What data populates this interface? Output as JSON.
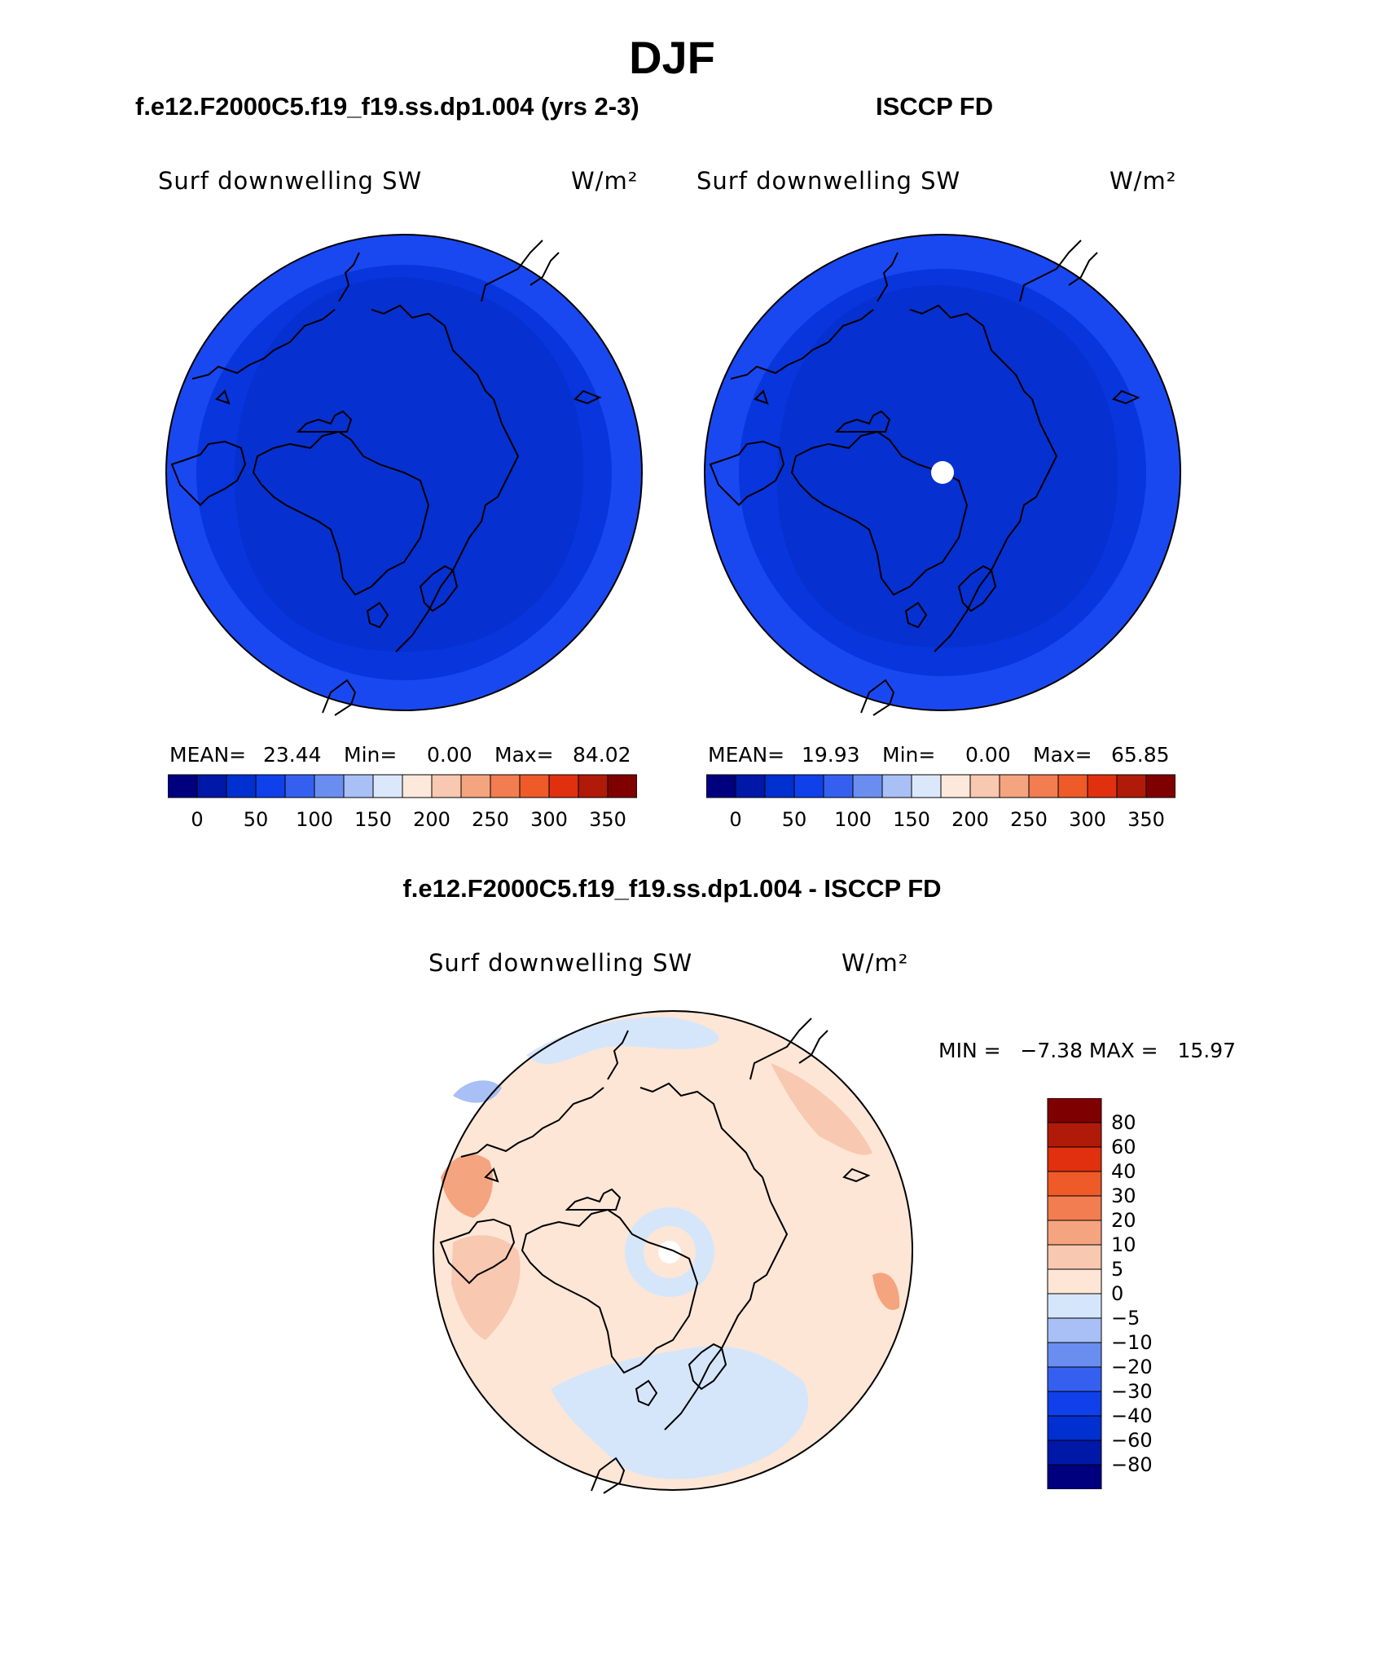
{
  "title": "DJF",
  "colors": {
    "sequential": [
      "#00007f",
      "#0018a8",
      "#0030d0",
      "#1040ea",
      "#3560ef",
      "#6a8ef0",
      "#a8c0f5",
      "#dbe8fb",
      "#fde9dc",
      "#f8c8b0",
      "#f5a480",
      "#f27d50",
      "#ee5a28",
      "#e03010",
      "#b01a08",
      "#7f0000"
    ],
    "diff_neg": [
      "#00007f",
      "#0018a8",
      "#0030d0",
      "#1040ea",
      "#3560ef",
      "#6a8ef0",
      "#a8c0f5",
      "#d6e6fa"
    ],
    "diff_pos": [
      "#fde6d6",
      "#f8c8b0",
      "#f5a480",
      "#f27d50",
      "#ee5a28",
      "#e03010",
      "#b01a08",
      "#7f0000"
    ]
  },
  "panels": [
    {
      "case_title": "f.e12.F2000C5.f19_f19.ss.dp1.004 (yrs 2-3)",
      "variable": "Surf downwelling SW",
      "units": "W/m²",
      "stats": {
        "mean_label": "MEAN=",
        "mean": "23.44",
        "min_label": "Min=",
        "min": "0.00",
        "max_label": "Max=",
        "max": "84.02"
      },
      "colorbar_ticks": [
        "0",
        "50",
        "100",
        "150",
        "200",
        "250",
        "300",
        "350"
      ],
      "has_missing_pole": false
    },
    {
      "case_title": "ISCCP FD",
      "variable": "Surf downwelling SW",
      "units": "W/m²",
      "stats": {
        "mean_label": "MEAN=",
        "mean": "19.93",
        "min_label": "Min=",
        "min": "0.00",
        "max_label": "Max=",
        "max": "65.85"
      },
      "colorbar_ticks": [
        "0",
        "50",
        "100",
        "150",
        "200",
        "250",
        "300",
        "350"
      ],
      "has_missing_pole": true
    }
  ],
  "diff": {
    "title": "f.e12.F2000C5.f19_f19.ss.dp1.004 - ISCCP FD",
    "variable": "Surf downwelling SW",
    "units": "W/m²",
    "minmax": "MIN =   −7.38 MAX =   15.97",
    "legend_ticks": [
      "80",
      "60",
      "40",
      "30",
      "20",
      "10",
      "5",
      "0",
      "−5",
      "−10",
      "−20",
      "−30",
      "−40",
      "−60",
      "−80"
    ]
  }
}
